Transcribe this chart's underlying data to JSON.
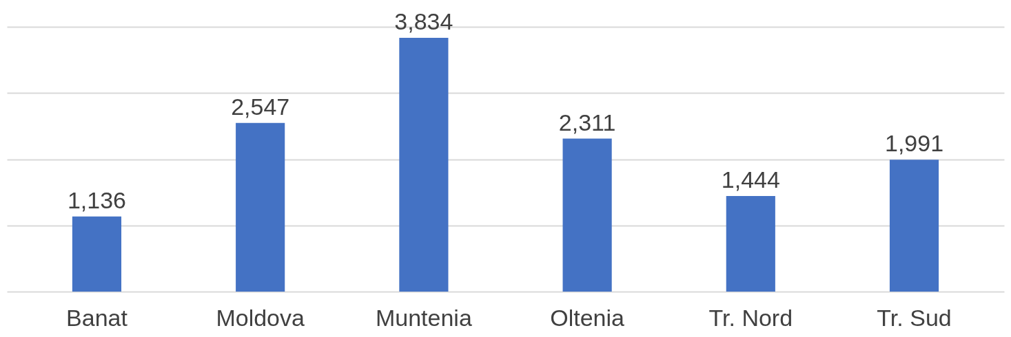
{
  "chart_data": {
    "type": "bar",
    "categories": [
      "Banat",
      "Moldova",
      "Muntenia",
      "Oltenia",
      "Tr. Nord",
      "Tr. Sud"
    ],
    "values": [
      1136,
      2547,
      3834,
      2311,
      1444,
      1991
    ],
    "value_labels": [
      "1,136",
      "2,547",
      "3,834",
      "2,311",
      "1,444",
      "1,991"
    ],
    "color": "#4472c4",
    "grid": "y",
    "tick_labels": "x"
  }
}
